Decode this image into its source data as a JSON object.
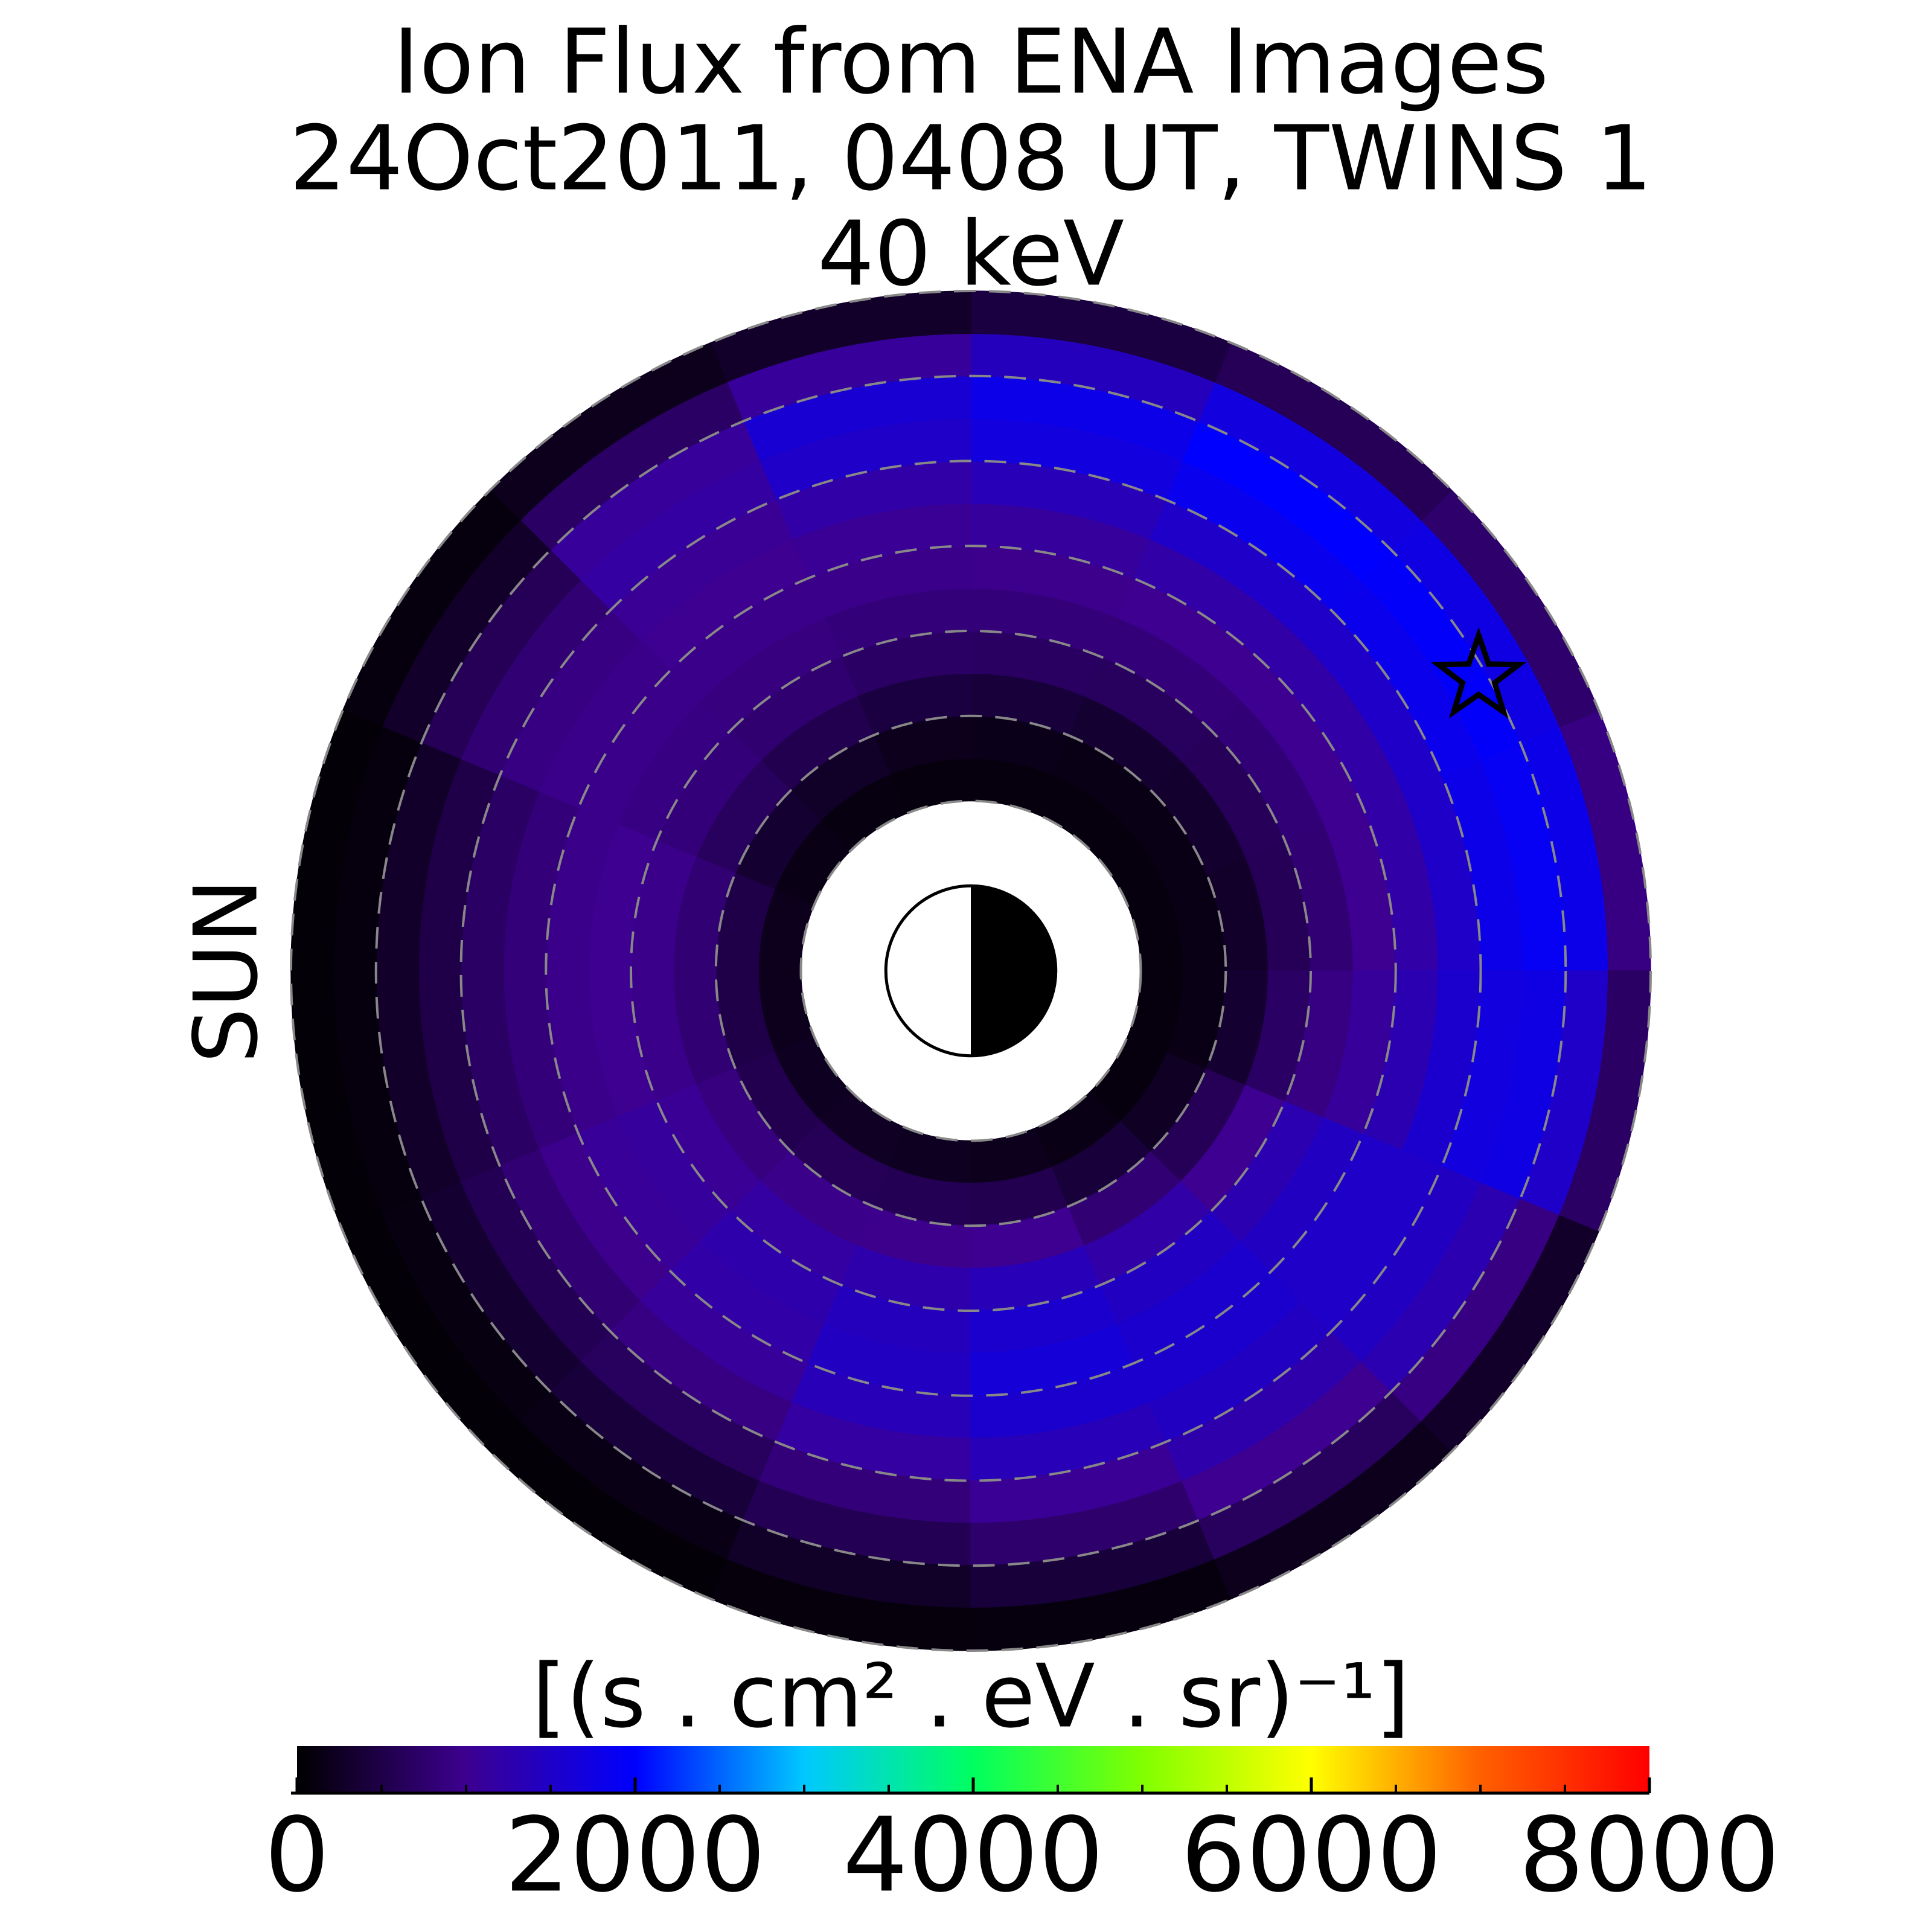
{
  "chart_data": {
    "type": "polar-heatmap",
    "title": [
      "Ion Flux from  ENA Images",
      "24Oct2011, 0408 UT,  TWINS 1",
      "40 keV"
    ],
    "side_label": "SUN",
    "colorbar_label": "[(s . cm² . eV . sr)⁻¹]",
    "r_edges": [
      2,
      2.5,
      3,
      3.5,
      4,
      4.5,
      5,
      5.5,
      6,
      6.5,
      7,
      7.5,
      8
    ],
    "theta_edges": [
      0,
      22.5,
      45,
      67.5,
      90,
      112.5,
      135,
      157.5,
      180,
      202.5,
      225,
      247.5,
      270,
      292.5,
      315,
      337.5,
      360
    ],
    "values": [
      [
        100,
        100,
        100,
        100,
        100,
        120,
        150,
        200,
        200,
        220,
        250,
        220,
        200,
        150,
        100,
        100
      ],
      [
        150,
        150,
        150,
        180,
        200,
        280,
        350,
        500,
        500,
        550,
        600,
        580,
        550,
        400,
        250,
        150
      ],
      [
        300,
        320,
        350,
        400,
        450,
        550,
        650,
        800,
        800,
        880,
        950,
        980,
        1000,
        800,
        600,
        350
      ],
      [
        600,
        620,
        650,
        680,
        700,
        780,
        850,
        950,
        950,
        1050,
        1150,
        1250,
        1350,
        1200,
        1000,
        700
      ],
      [
        800,
        820,
        850,
        850,
        850,
        880,
        900,
        1000,
        1000,
        1120,
        1250,
        1400,
        1550,
        1450,
        1300,
        900
      ],
      [
        1000,
        1000,
        1000,
        980,
        950,
        950,
        950,
        950,
        950,
        1080,
        1200,
        1450,
        1650,
        1550,
        1450,
        1100
      ],
      [
        1200,
        1200,
        1200,
        1120,
        1050,
        1000,
        950,
        850,
        850,
        980,
        1100,
        1350,
        1550,
        1550,
        1500,
        1300
      ],
      [
        1500,
        1500,
        1500,
        1350,
        1200,
        1050,
        900,
        700,
        700,
        800,
        900,
        1150,
        1350,
        1450,
        1500,
        1550
      ],
      [
        1800,
        1830,
        1850,
        1700,
        1500,
        1150,
        800,
        500,
        500,
        580,
        650,
        850,
        1050,
        1250,
        1450,
        1700
      ],
      [
        1900,
        1950,
        2000,
        1800,
        1600,
        1100,
        600,
        300,
        300,
        350,
        400,
        580,
        750,
        1000,
        1300,
        1750
      ],
      [
        1800,
        1750,
        1700,
        1400,
        1100,
        700,
        300,
        100,
        100,
        120,
        150,
        280,
        400,
        650,
        900,
        1500
      ],
      [
        900,
        750,
        600,
        450,
        300,
        200,
        100,
        50,
        50,
        50,
        50,
        80,
        100,
        200,
        300,
        700
      ]
    ],
    "rlim": [
      0,
      8
    ],
    "rgrid": [
      2,
      3,
      4,
      5,
      6,
      7,
      8
    ],
    "star": {
      "r": 6.9,
      "theta": 30
    },
    "zlim": [
      0,
      8000
    ],
    "zticks": [
      0,
      2000,
      4000,
      6000,
      8000
    ],
    "zminorticks": [
      500,
      1000,
      1500,
      2500,
      3000,
      3500,
      4500,
      5000,
      5500,
      6500,
      7000,
      7500
    ],
    "colormap": [
      "#000000",
      "#3d0090",
      "#0000ff",
      "#00c8ff",
      "#00ff60",
      "#80ff00",
      "#ffff00",
      "#ff6000",
      "#ff0000"
    ],
    "side_label_color": "#f5a000"
  }
}
